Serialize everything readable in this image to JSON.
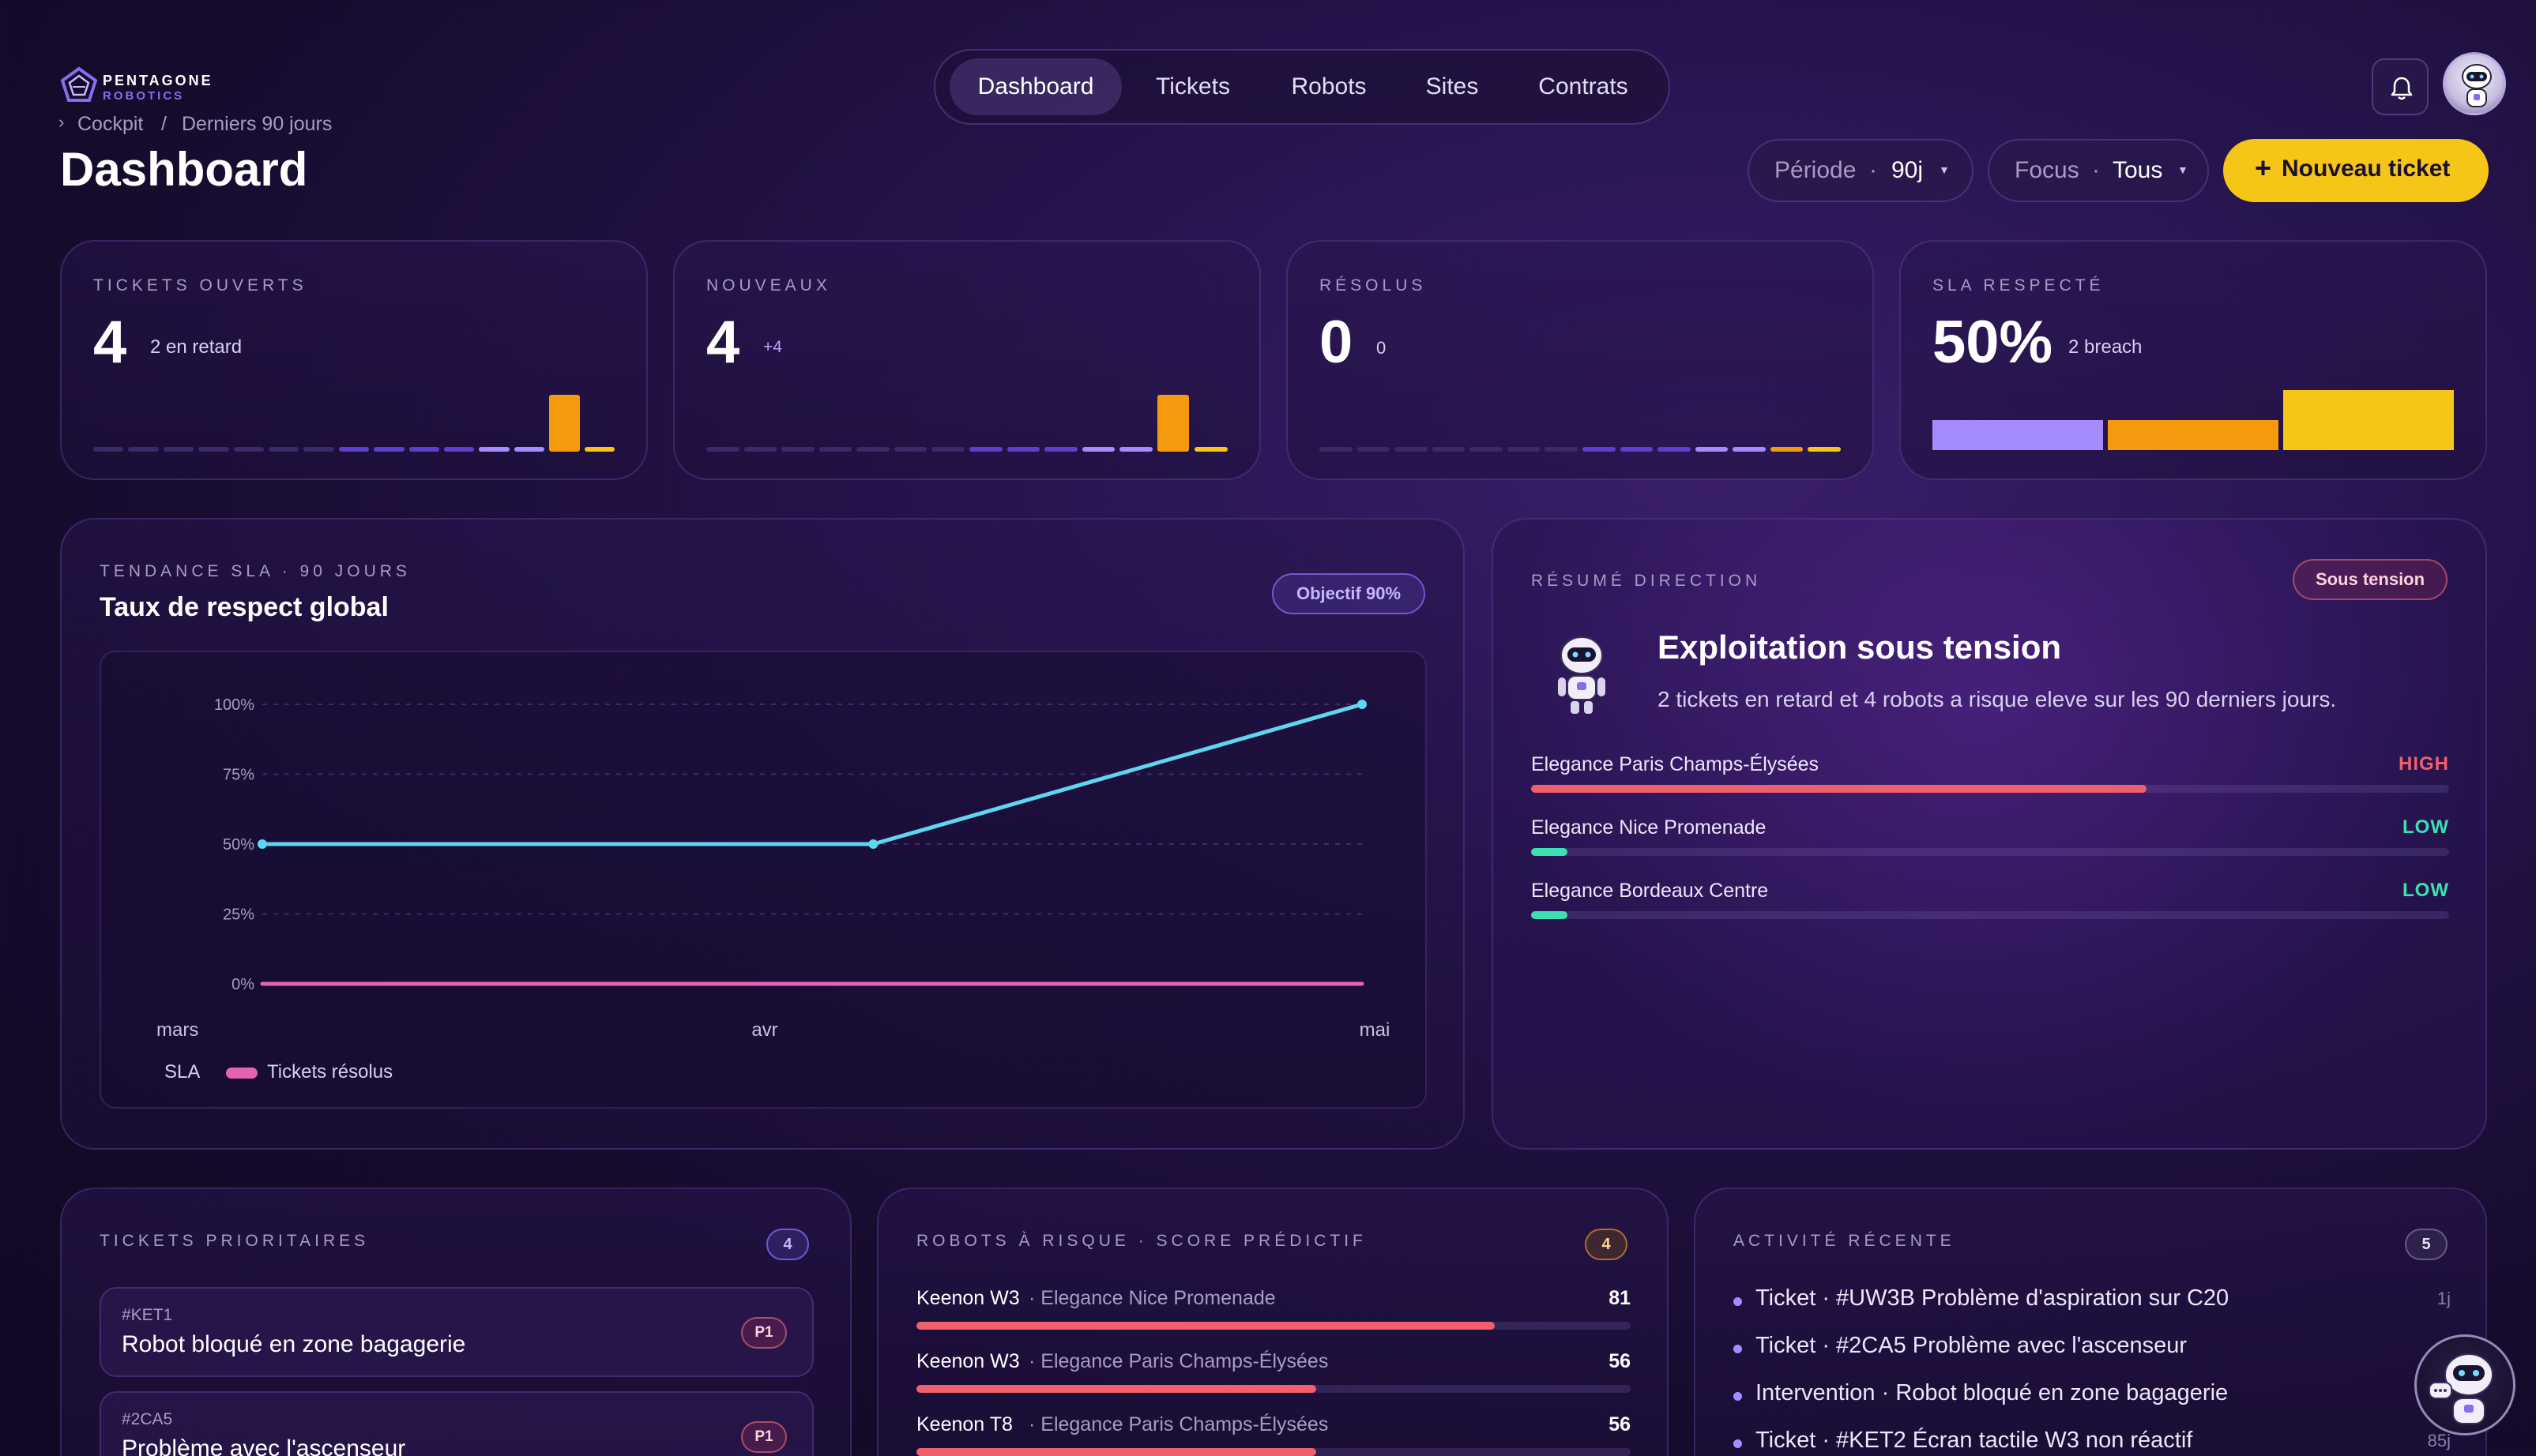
{
  "brand": {
    "name": "PENTAGONE",
    "sub": "ROBOTICS"
  },
  "breadcrumb": {
    "item1": "Cockpit",
    "sep": "/",
    "item2": "Derniers 90 jours"
  },
  "page_title": "Dashboard",
  "nav": [
    "Dashboard",
    "Tickets",
    "Robots",
    "Sites",
    "Contrats"
  ],
  "filters": {
    "period_label": "Période",
    "period_value": "90j",
    "focus_label": "Focus",
    "focus_value": "Tous",
    "dot": "·"
  },
  "new_ticket": {
    "plus": "+",
    "label": "Nouveau ticket"
  },
  "kpis": [
    {
      "label": "TICKETS OUVERTS",
      "value": "4",
      "sub": "2 en retard"
    },
    {
      "label": "NOUVEAUX",
      "value": "4",
      "sub": "+4"
    },
    {
      "label": "RÉSOLUS",
      "value": "0",
      "sub": "0"
    },
    {
      "label": "SLA RESPECTÉ",
      "value": "50%",
      "sub": "2 breach"
    }
  ],
  "sla_bar_fractions": [
    0.5,
    0.5,
    1.0
  ],
  "sla_card": {
    "eyebrow": "TENDANCE SLA · 90 JOURS",
    "title": "Taux de respect global",
    "badge": "Objectif 90%"
  },
  "chart_data": {
    "type": "line",
    "title": "Taux de respect global",
    "x": [
      "mars",
      "avr",
      "mai"
    ],
    "y_ticks": [
      "100%",
      "75%",
      "50%",
      "25%",
      "0%"
    ],
    "ylim": [
      0,
      100
    ],
    "grid": true,
    "legend_position": "bottom-left",
    "series": [
      {
        "name": "SLA",
        "color": "#5fd6f0",
        "points": [
          [
            0,
            50
          ],
          [
            0.5,
            50
          ],
          [
            0.9,
            100
          ]
        ]
      },
      {
        "name": "Tickets résolus",
        "color": "#e862b4",
        "points": [
          [
            0,
            0
          ],
          [
            0.9,
            0
          ]
        ]
      }
    ]
  },
  "direction": {
    "eyebrow": "RÉSUMÉ DIRECTION",
    "badge": "Sous tension",
    "title": "Exploitation sous tension",
    "desc": "2 tickets en retard et 4 robots a risque eleve sur les 90 derniers jours.",
    "sites": [
      {
        "name": "Elegance Paris Champs-Élysées",
        "level": "HIGH",
        "fraction": 0.67,
        "color": "#f0606a"
      },
      {
        "name": "Elegance Nice Promenade",
        "level": "LOW",
        "fraction": 0.04,
        "color": "#3de0b0"
      },
      {
        "name": "Elegance Bordeaux Centre",
        "level": "LOW",
        "fraction": 0.04,
        "color": "#3de0b0"
      }
    ]
  },
  "priority": {
    "eyebrow": "TICKETS PRIORITAIRES",
    "count": "4",
    "tickets": [
      {
        "id": "#KET1",
        "title": "Robot bloqué en zone bagagerie",
        "priority": "P1"
      },
      {
        "id": "#2CA5",
        "title": "Problème avec l'ascenseur",
        "priority": "P1"
      }
    ]
  },
  "robots": {
    "eyebrow": "ROBOTS À RISQUE · SCORE PRÉDICTIF",
    "count": "4",
    "items": [
      {
        "model": "Keenon W3",
        "site": "· Elegance Nice Promenade",
        "score": "81",
        "fraction": 0.81
      },
      {
        "model": "Keenon W3",
        "site": "· Elegance Paris Champs-Élysées",
        "score": "56",
        "fraction": 0.56
      },
      {
        "model": "Keenon T8",
        "site": "· Elegance Paris Champs-Élysées",
        "score": "56",
        "fraction": 0.56
      }
    ]
  },
  "activity": {
    "eyebrow": "ACTIVITÉ RÉCENTE",
    "count": "5",
    "items": [
      {
        "text": "Ticket · #UW3B Problème d'aspiration sur C20",
        "time": "1j"
      },
      {
        "text": "Ticket · #2CA5 Problème avec l'ascenseur",
        "time": ""
      },
      {
        "text": "Intervention · Robot bloqué en zone bagagerie",
        "time": ""
      },
      {
        "text": "Ticket · #KET2 Écran tactile W3 non réactif",
        "time": "85j"
      }
    ]
  },
  "colors": {
    "accent_yellow": "#f5c518",
    "orange": "#f59a0c",
    "violet": "#a48cff",
    "sla_line": "#5fd6f0",
    "resolved_line": "#e862b4",
    "high": "#f0606a",
    "low": "#3de0b0"
  },
  "icons": [
    "pentagon-logo-icon",
    "bell-icon",
    "robot-avatar-icon",
    "robot-mascot-icon",
    "chat-bot-icon",
    "chevron-down-icon"
  ]
}
